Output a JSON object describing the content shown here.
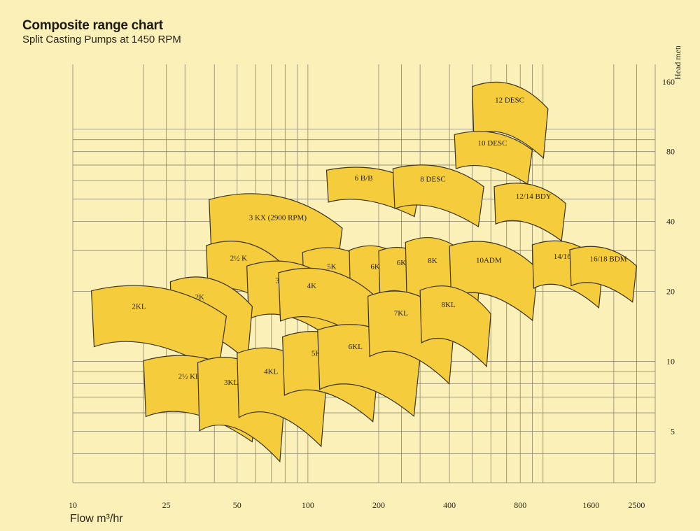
{
  "title": "Composite range chart",
  "subtitle": "Split Casting Pumps at 1450 RPM",
  "chart_data": {
    "type": "area",
    "title": "Composite range chart",
    "subtitle": "Split Casting Pumps at 1450 RPM",
    "xlabel": "Flow m³/hr",
    "ylabel": "Head metres",
    "x_scale": "log",
    "y_scale": "log",
    "xlim": [
      10,
      3000
    ],
    "ylim": [
      3,
      190
    ],
    "x_ticks": [
      10,
      25,
      50,
      100,
      200,
      400,
      800,
      1600,
      2500
    ],
    "x_tick_labels": [
      "10",
      "25",
      "50",
      "100",
      "200",
      "400",
      "800",
      "1600",
      "2500"
    ],
    "y_ticks": [
      5,
      10,
      20,
      40,
      80,
      160
    ],
    "y_tick_labels": [
      "5",
      "10",
      "20",
      "40",
      "80",
      "160"
    ],
    "grid": true,
    "zones": [
      {
        "label": "12 DESC",
        "flow": [
          500,
          1050
        ],
        "head": [
          75,
          165
        ]
      },
      {
        "label": "10 DESC",
        "flow": [
          420,
          900
        ],
        "head": [
          58,
          100
        ]
      },
      {
        "label": "6 B/B",
        "flow": [
          120,
          300
        ],
        "head": [
          42,
          70
        ]
      },
      {
        "label": "8 DESC",
        "flow": [
          230,
          560
        ],
        "head": [
          38,
          72
        ]
      },
      {
        "label": "12/14 BDY",
        "flow": [
          620,
          1250
        ],
        "head": [
          33,
          60
        ]
      },
      {
        "label": "3 KX (2900 RPM)",
        "flow": [
          38,
          140
        ],
        "head": [
          20,
          55
        ]
      },
      {
        "label": "2½ K",
        "flow": [
          37,
          80
        ],
        "head": [
          16,
          34
        ]
      },
      {
        "label": "5K",
        "flow": [
          95,
          210
        ],
        "head": [
          14,
          32
        ]
      },
      {
        "label": "6K (6 VANE IMP.)",
        "flow": [
          150,
          300
        ],
        "head": [
          13,
          33
        ]
      },
      {
        "label": "6K (8 VANE IMP.)",
        "flow": [
          200,
          360
        ],
        "head": [
          16,
          32
        ]
      },
      {
        "label": "8K",
        "flow": [
          260,
          540
        ],
        "head": [
          13,
          36
        ]
      },
      {
        "label": "10ADM",
        "flow": [
          400,
          950
        ],
        "head": [
          15,
          34
        ]
      },
      {
        "label": "14/16 BDM",
        "flow": [
          900,
          1800
        ],
        "head": [
          17,
          34
        ]
      },
      {
        "label": "16/18 BDM",
        "flow": [
          1300,
          2500
        ],
        "head": [
          18,
          32
        ]
      },
      {
        "label": "3K",
        "flow": [
          55,
          140
        ],
        "head": [
          12,
          28
        ]
      },
      {
        "label": "4K",
        "flow": [
          75,
          190
        ],
        "head": [
          12,
          26
        ]
      },
      {
        "label": "2K",
        "flow": [
          26,
          58
        ],
        "head": [
          10,
          24
        ]
      },
      {
        "label": "2KL",
        "flow": [
          12,
          45
        ],
        "head": [
          9,
          22
        ]
      },
      {
        "label": "2½ KL",
        "flow": [
          20,
          62
        ],
        "head": [
          4.5,
          11
        ]
      },
      {
        "label": "3KL",
        "flow": [
          34,
          80
        ],
        "head": [
          3.7,
          11
        ]
      },
      {
        "label": "4KL",
        "flow": [
          50,
          120
        ],
        "head": [
          4.3,
          12
        ]
      },
      {
        "label": "5KL",
        "flow": [
          78,
          200
        ],
        "head": [
          5.5,
          14
        ]
      },
      {
        "label": "6KL",
        "flow": [
          110,
          300
        ],
        "head": [
          5.8,
          15
        ]
      },
      {
        "label": "7KL",
        "flow": [
          180,
          420
        ],
        "head": [
          8,
          21
        ]
      },
      {
        "label": "8KL",
        "flow": [
          300,
          600
        ],
        "head": [
          9.5,
          22
        ]
      }
    ]
  }
}
